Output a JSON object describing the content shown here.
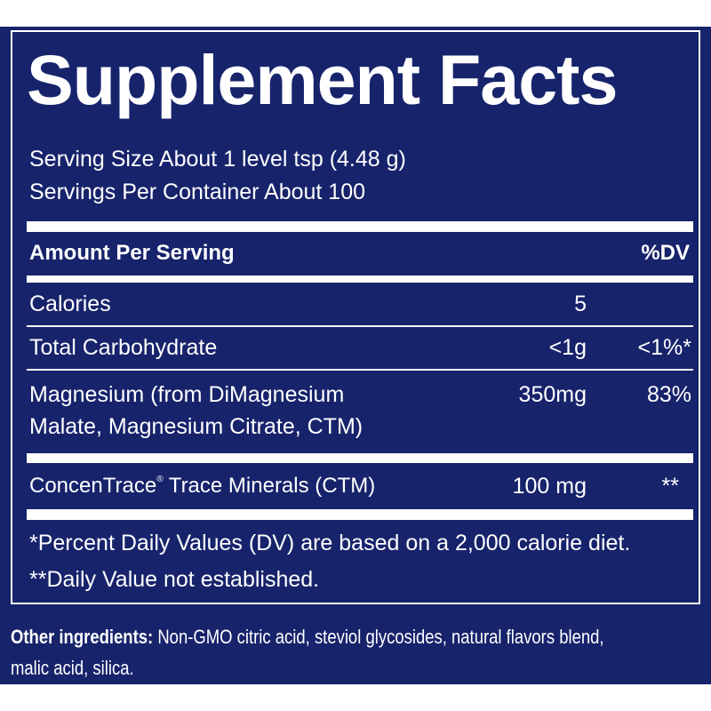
{
  "header": {
    "title": "Supplement Facts",
    "serving_size": "Serving Size About 1 level tsp (4.48 g)",
    "servings_per_container": "Servings Per Container About 100"
  },
  "table": {
    "columns": [
      "Amount Per Serving",
      "%DV"
    ],
    "rows": [
      {
        "name": [
          "Calories"
        ],
        "amount": "5"
      },
      {
        "name": [
          "Total Carbohydrate"
        ],
        "amount": "<1g",
        "dv": "<1%*"
      },
      {
        "name": [
          "Magnesium (from DiMagnesium",
          "Malate, Magnesium Citrate, CTM)"
        ],
        "amount": "350mg",
        "dv": "83%"
      },
      {
        "name": [
          "ConcenTrace",
          "®",
          "Trace Minerals (CTM)"
        ],
        "amount": "100 mg",
        "dv": "**"
      }
    ]
  },
  "footnotes": [
    "*Percent Daily Values (DV) are based on a 2,000 calorie diet.",
    "**Daily Value not established."
  ],
  "other_ingredients": {
    "label": "Other ingredients:",
    "text": "Non-GMO citric acid, steviol glycosides, natural flavors blend,",
    "text_line2": "malic acid, silica."
  }
}
